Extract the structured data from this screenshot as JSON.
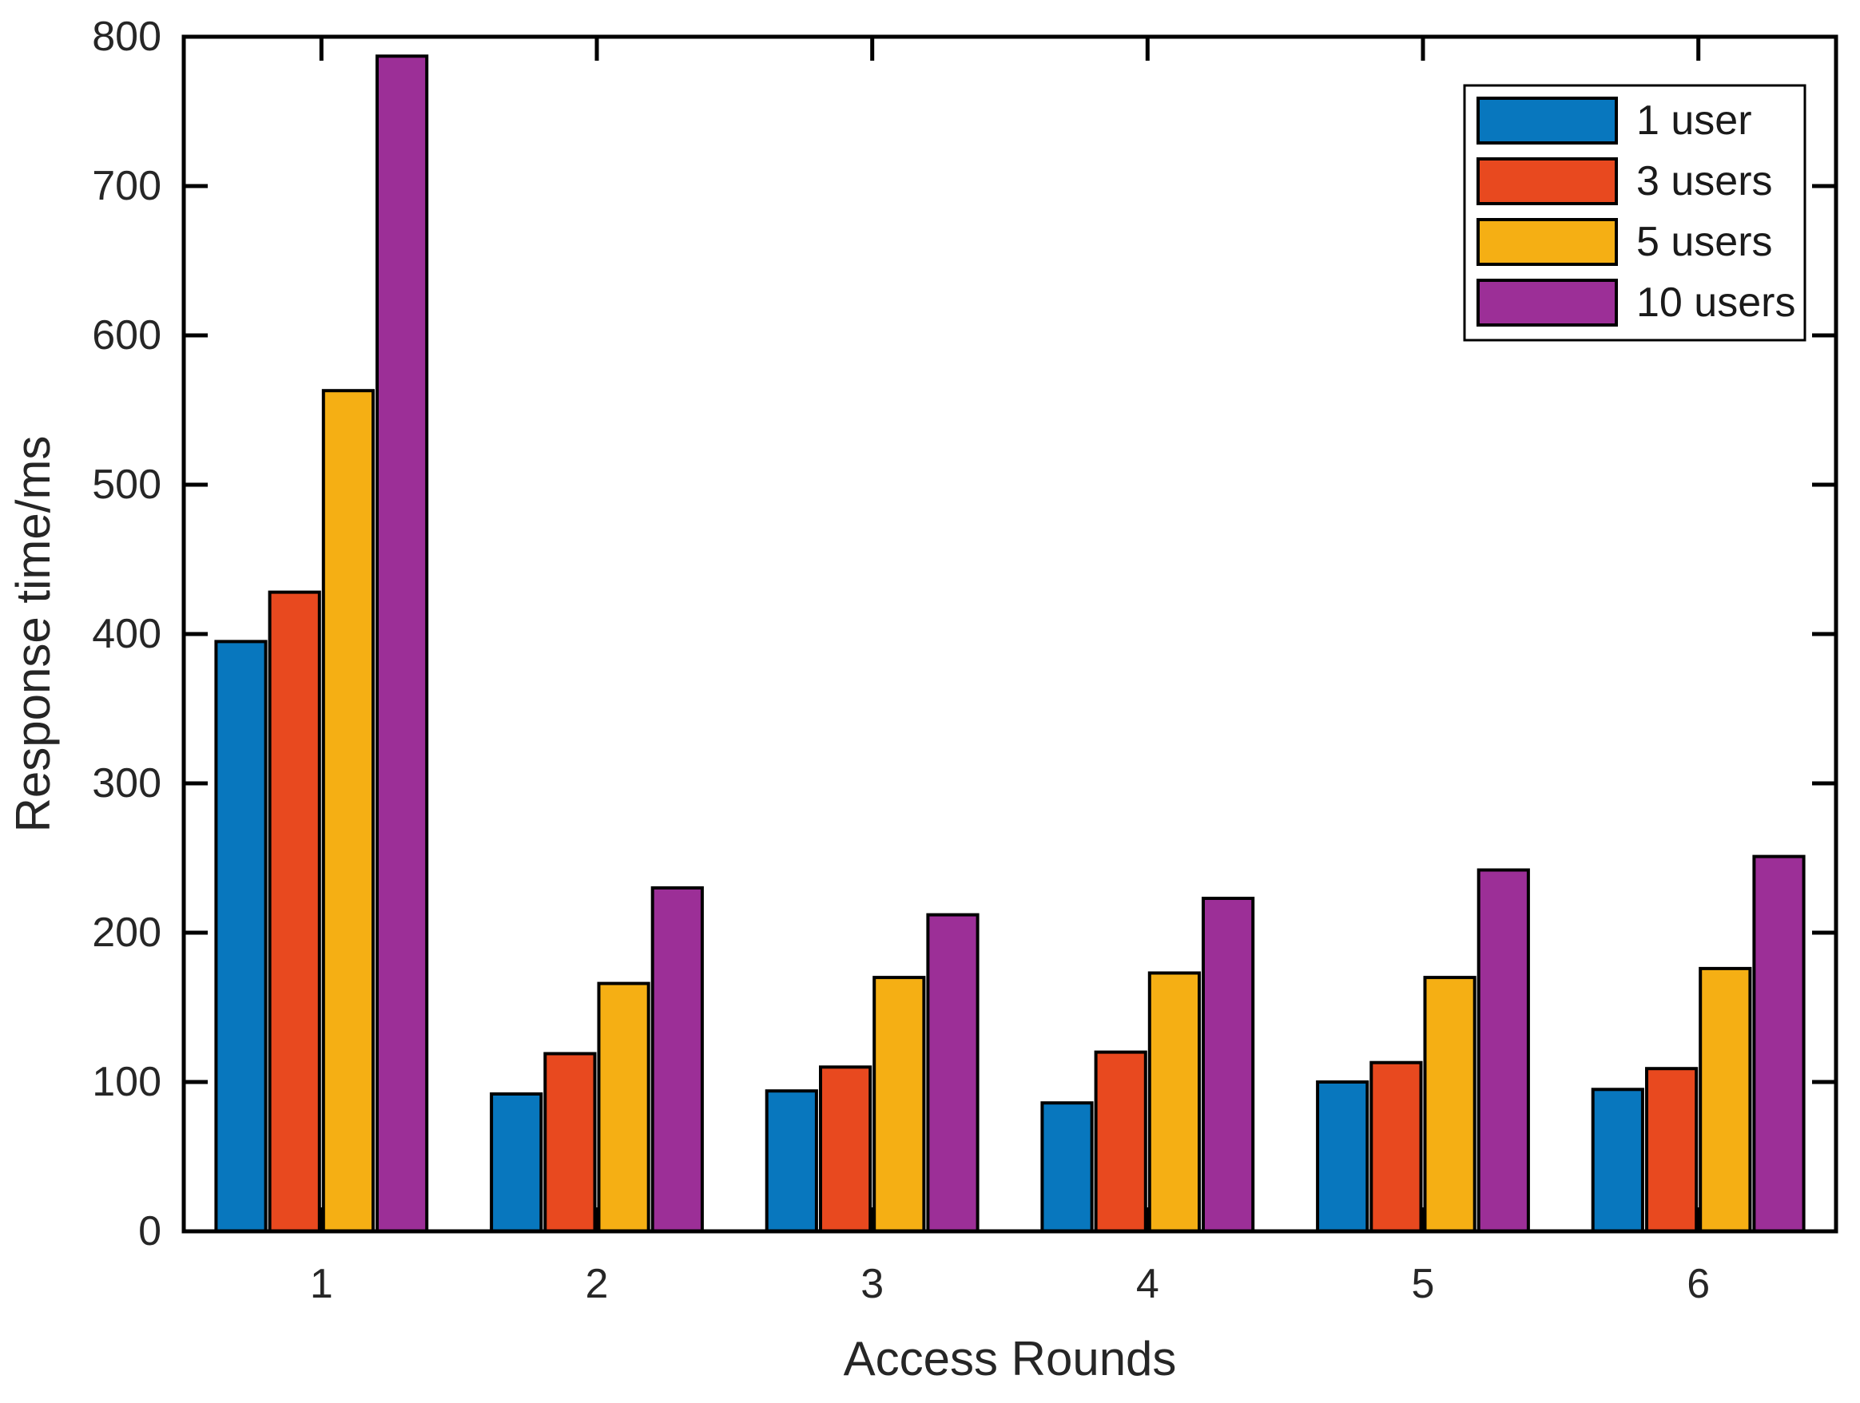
{
  "figure": {
    "background": "#ffffff",
    "axis_color": "#000000",
    "text_color": "#262626"
  },
  "chart_data": {
    "type": "bar",
    "title": "",
    "xlabel": "Access Rounds",
    "ylabel": "Response time/ms",
    "categories": [
      "1",
      "2",
      "3",
      "4",
      "5",
      "6"
    ],
    "series": [
      {
        "name": "1 user",
        "color": "#0877BE",
        "values": [
          395,
          92,
          94,
          86,
          100,
          95
        ]
      },
      {
        "name": "3 users",
        "color": "#E8491F",
        "values": [
          428,
          119,
          110,
          120,
          113,
          109
        ]
      },
      {
        "name": "5 users",
        "color": "#F5AF14",
        "values": [
          563,
          166,
          170,
          173,
          170,
          176
        ]
      },
      {
        "name": "10 users",
        "color": "#9C2F97",
        "values": [
          787,
          230,
          212,
          223,
          242,
          251
        ]
      }
    ],
    "ylim": [
      0,
      800
    ],
    "ytick_step": 100,
    "yticks": [
      0,
      100,
      200,
      300,
      400,
      500,
      600,
      700,
      800
    ],
    "bar_edge_color": "#000000",
    "grid": false,
    "legend_position": "top-right",
    "legend_border_color": "#000000"
  }
}
